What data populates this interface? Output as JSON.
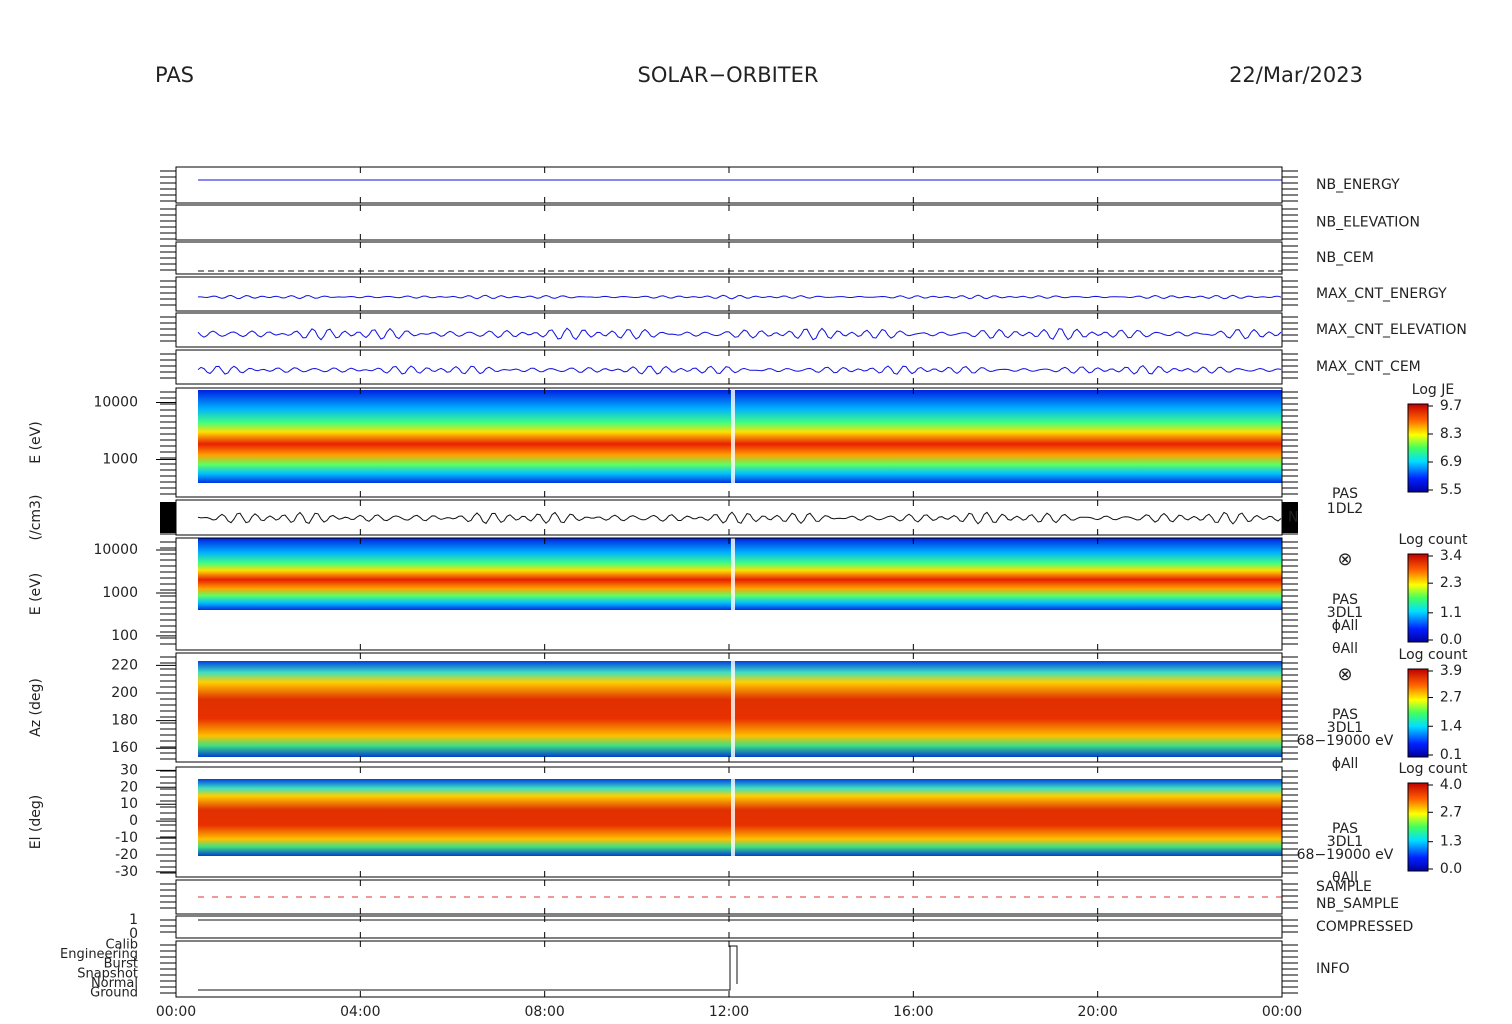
{
  "header": {
    "instrument": "PAS",
    "mission": "SOLAR−ORBITER",
    "date": "22/Mar/2023"
  },
  "x_axis": {
    "ticks": [
      "00:00",
      "04:00",
      "08:00",
      "12:00",
      "16:00",
      "20:00",
      "00:00"
    ]
  },
  "panels": [
    {
      "label": "NB_ENERGY"
    },
    {
      "label": "NB_ELEVATION"
    },
    {
      "label": "NB_CEM"
    },
    {
      "label": "MAX_CNT_ENERGY"
    },
    {
      "label": "MAX_CNT_ELEVATION"
    },
    {
      "label": "MAX_CNT_CEM"
    },
    {
      "ylabel": "E (eV)",
      "log": true,
      "ylim": [
        220,
        18000
      ],
      "yticks": [
        10000,
        1000
      ],
      "colorbar": {
        "title": "Log JE",
        "ticks": [
          9.7,
          8.3,
          6.9,
          5.5
        ]
      }
    },
    {
      "ylabel": "(/cm3)",
      "side": [
        "PAS",
        "1DL2"
      ],
      "marker": "N"
    },
    {
      "ylabel": "E (eV)",
      "log": true,
      "ylim": [
        47,
        19000
      ],
      "yticks": [
        10000,
        1000,
        100
      ],
      "side": [
        "PAS",
        "3DL1",
        "ϕAll",
        "θAll"
      ],
      "colorbar": {
        "title": "Log count",
        "ticks": [
          3.4,
          2.3,
          1.1,
          {
            "value": 0,
            "label": "0.0"
          }
        ]
      }
    },
    {
      "ylabel": "Az (deg)",
      "ylim": [
        150,
        229
      ],
      "yticks": [
        220,
        200,
        180,
        160
      ],
      "side": [
        "PAS",
        "3DL1",
        "68−19000 eV",
        "ϕAll"
      ],
      "colorbar": {
        "title": "Log count",
        "ticks": [
          3.9,
          2.7,
          1.4,
          0.1
        ]
      }
    },
    {
      "ylabel": "El (deg)",
      "ylim": [
        -33,
        32
      ],
      "yticks": [
        30,
        20,
        10,
        0,
        -10,
        -20,
        -30
      ],
      "side": [
        "PAS",
        "3DL1",
        "68−19000 eV",
        "θAll"
      ],
      "colorbar": {
        "title": "Log count",
        "ticks": [
          {
            "value": 4,
            "label": "4.0"
          },
          2.7,
          1.3,
          {
            "value": 0,
            "label": "0.0"
          }
        ]
      }
    },
    {
      "labels": [
        "SAMPLE",
        "NB_SAMPLE"
      ]
    },
    {
      "label": "COMPRESSED",
      "yticks": [
        1,
        0
      ]
    },
    {
      "label": "INFO",
      "yticks": [
        "Calib",
        "Engineering",
        "Burst",
        "Snapshot",
        "Normal",
        "Ground"
      ]
    }
  ]
}
